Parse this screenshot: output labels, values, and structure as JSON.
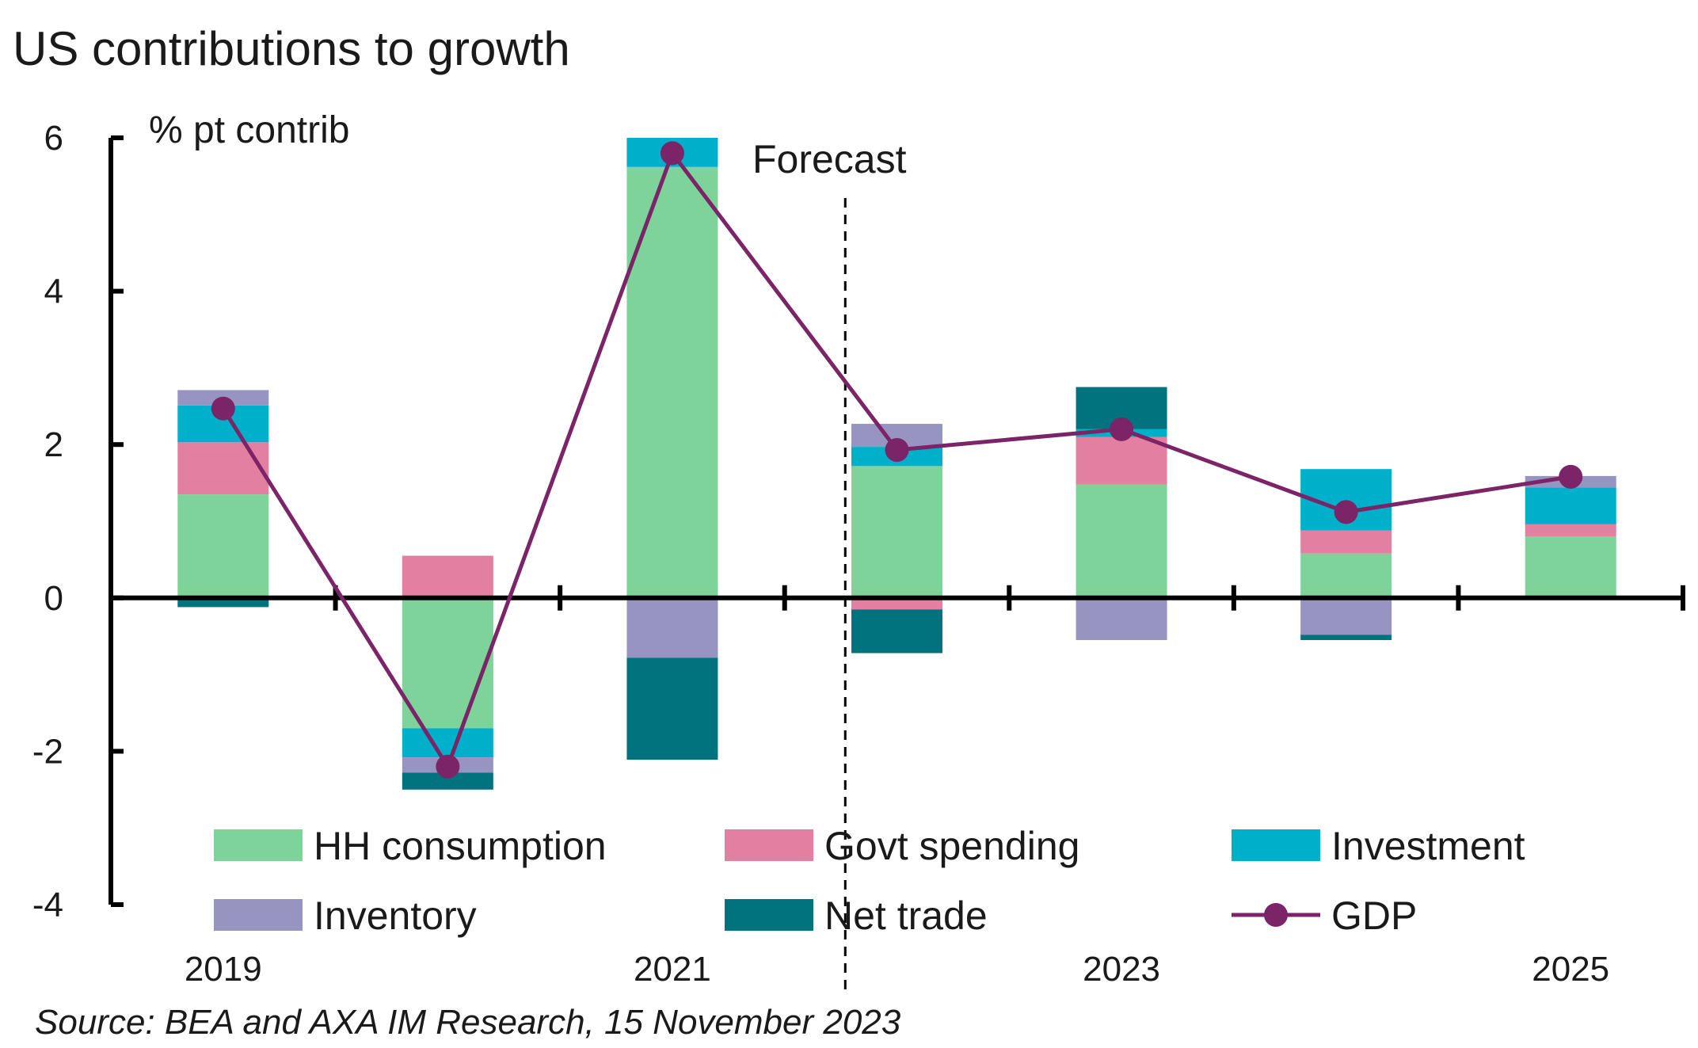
{
  "chart_data": {
    "type": "bar",
    "stacked": true,
    "title": "US contributions to growth",
    "ylabel": "% pt contrib",
    "ylim": [
      -4,
      6
    ],
    "yticks": [
      -4,
      -2,
      0,
      2,
      4,
      6
    ],
    "categories": [
      "2019",
      "2020",
      "2021",
      "2022",
      "2023",
      "2024",
      "2025"
    ],
    "xtick_labels": [
      "2019",
      "",
      "2021",
      "",
      "2023",
      "",
      "2025"
    ],
    "forecast_label": "Forecast",
    "series": [
      {
        "name": "HH consumption",
        "color": "#7dd39a",
        "values": [
          1.35,
          -1.7,
          5.62,
          1.72,
          1.48,
          0.58,
          0.8
        ]
      },
      {
        "name": "Govt spending",
        "color": "#e37fa0",
        "values": [
          0.68,
          0.55,
          0.0,
          -0.15,
          0.62,
          0.3,
          0.16
        ]
      },
      {
        "name": "Investment",
        "color": "#00afc9",
        "values": [
          0.48,
          -0.38,
          0.38,
          0.25,
          0.1,
          0.8,
          0.48
        ]
      },
      {
        "name": "Inventory",
        "color": "#9894c1",
        "values": [
          0.2,
          -0.2,
          -0.78,
          0.3,
          -0.55,
          -0.48,
          0.15
        ]
      },
      {
        "name": "Net trade",
        "color": "#00737f",
        "values": [
          -0.12,
          -0.22,
          -1.33,
          -0.57,
          0.55,
          -0.07,
          0.0
        ]
      }
    ],
    "line": {
      "name": "GDP",
      "color": "#7b2468",
      "values": [
        2.47,
        -2.2,
        5.8,
        1.93,
        2.2,
        1.12,
        1.58
      ]
    },
    "grid": false,
    "legend_position": "bottom"
  },
  "source": "Source: BEA and AXA IM Research, 15 November 2023"
}
